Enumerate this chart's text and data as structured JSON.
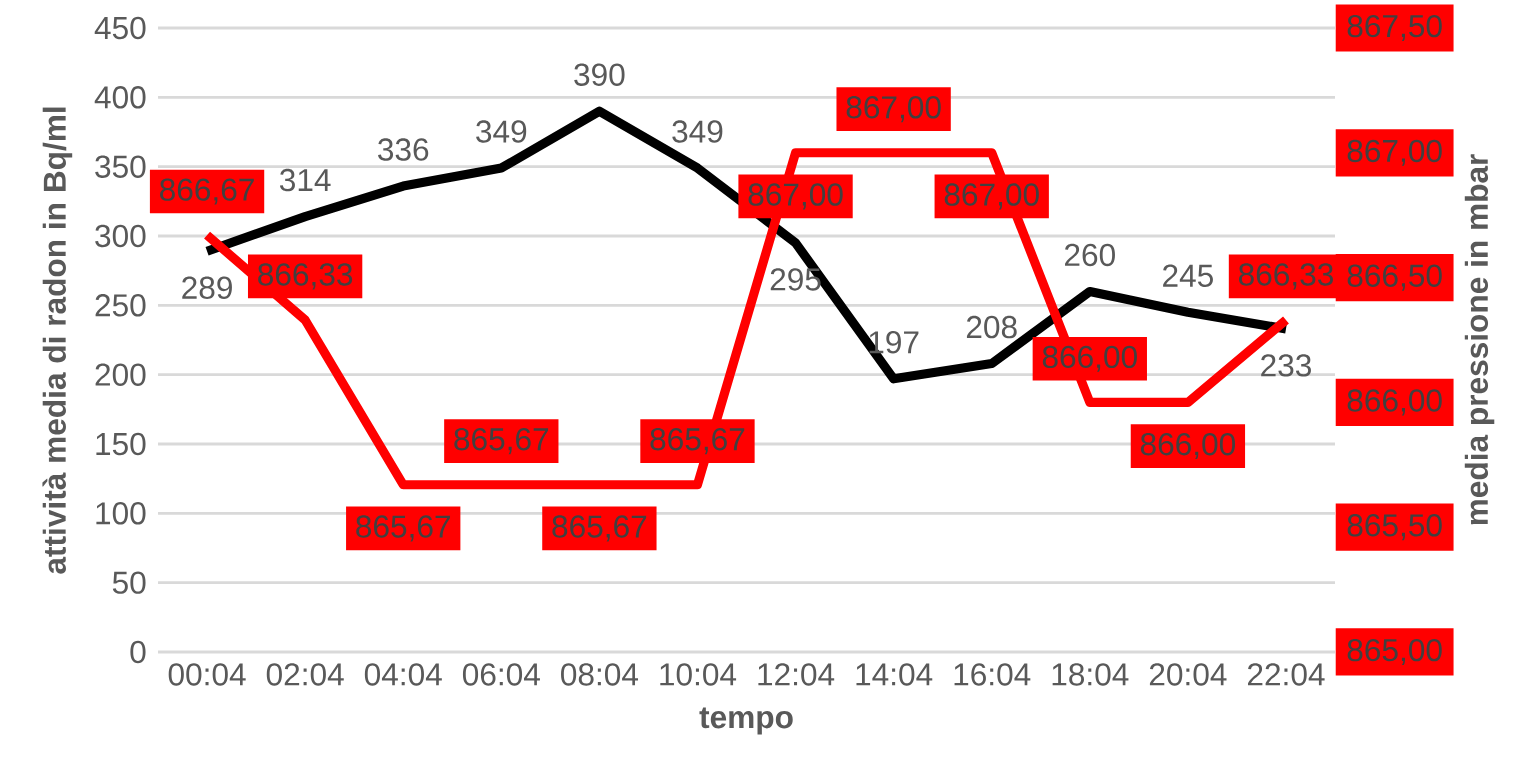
{
  "chart_data": {
    "type": "line",
    "xlabel": "tempo",
    "ylabel": "attività media di radon in Bq/ml",
    "y2label": "media pressione in mbar",
    "categories": [
      "00:04",
      "02:04",
      "04:04",
      "06:04",
      "08:04",
      "10:04",
      "12:04",
      "14:04",
      "16:04",
      "18:04",
      "20:04",
      "22:04"
    ],
    "ylim": [
      0,
      450
    ],
    "yticks": [
      0,
      50,
      100,
      150,
      200,
      250,
      300,
      350,
      400,
      450
    ],
    "y2lim": [
      865,
      867.5
    ],
    "y2ticks": [
      {
        "value": 865,
        "label": "865,00"
      },
      {
        "value": 865.5,
        "label": "865,50"
      },
      {
        "value": 866,
        "label": "866,00"
      },
      {
        "value": 866.5,
        "label": "866,50"
      },
      {
        "value": 867,
        "label": "867,00"
      },
      {
        "value": 867.5,
        "label": "867,50"
      }
    ],
    "grid": "y",
    "line_style": "solid",
    "series": [
      {
        "color": "#000000",
        "values": [
          289,
          314,
          336,
          349,
          390,
          349,
          295,
          197,
          208,
          260,
          245,
          233
        ],
        "value_labels": [
          "289",
          "314",
          "336",
          "349",
          "390",
          "349",
          "295",
          "197",
          "208",
          "260",
          "245",
          "233"
        ]
      },
      {
        "color": "#ff0000",
        "axis": "y2",
        "values": [
          866.67,
          866.33,
          865.67,
          865.67,
          865.67,
          865.67,
          867.0,
          867.0,
          867.0,
          866.0,
          866.0,
          866.33
        ],
        "value_labels": [
          "866,67",
          "866,33",
          "865,67",
          "865,67",
          "865,67",
          "865,67",
          "867,00",
          "867,00",
          "867,00",
          "866,00",
          "866,00",
          "866,33"
        ]
      }
    ]
  }
}
